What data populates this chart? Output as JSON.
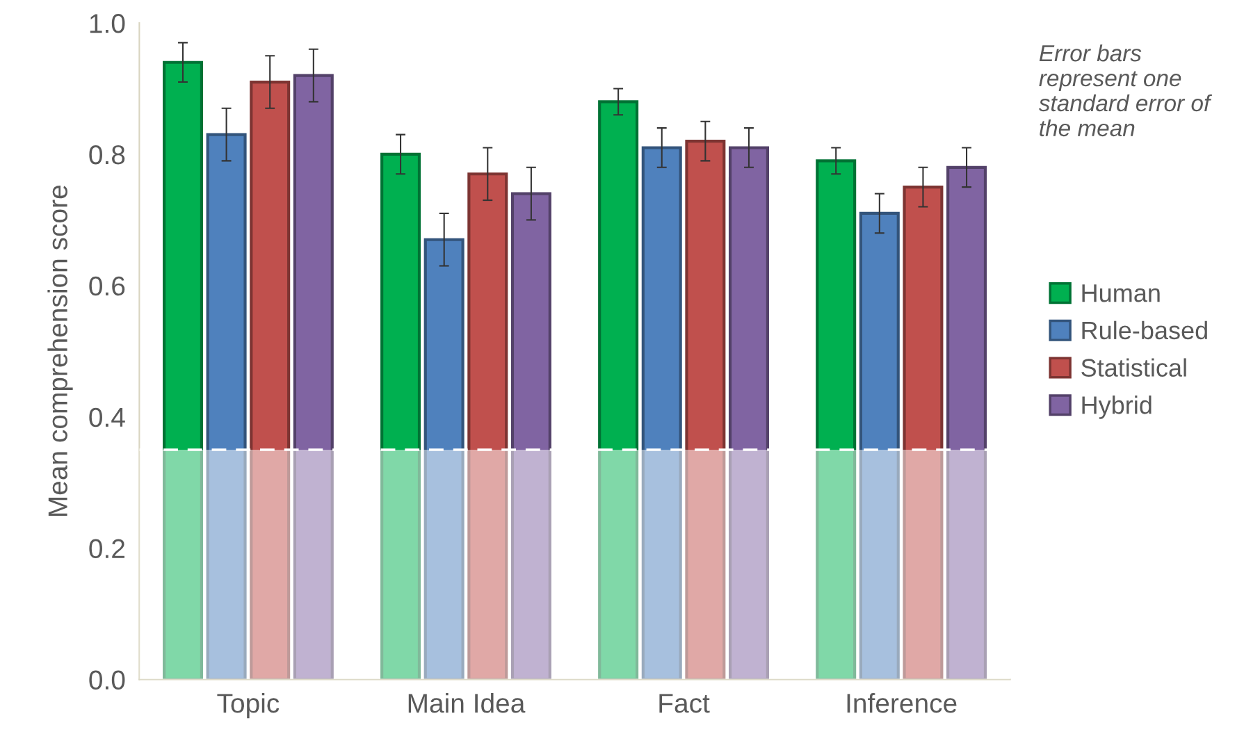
{
  "chart_data": {
    "type": "bar",
    "ylabel": "Mean comprehension score",
    "categories": [
      "Topic",
      "Main Idea",
      "Fact",
      "Inference"
    ],
    "series": [
      {
        "name": "Human",
        "color": "#00b050",
        "values": [
          0.94,
          0.8,
          0.88,
          0.79
        ],
        "errors": [
          0.03,
          0.03,
          0.02,
          0.02
        ]
      },
      {
        "name": "Rule-based",
        "color": "#4f81bd",
        "values": [
          0.83,
          0.67,
          0.81,
          0.71
        ],
        "errors": [
          0.04,
          0.04,
          0.03,
          0.03
        ]
      },
      {
        "name": "Statistical",
        "color": "#c0504d",
        "values": [
          0.91,
          0.77,
          0.82,
          0.75
        ],
        "errors": [
          0.04,
          0.04,
          0.03,
          0.03
        ]
      },
      {
        "name": "Hybrid",
        "color": "#8064a2",
        "values": [
          0.92,
          0.74,
          0.81,
          0.78
        ],
        "errors": [
          0.04,
          0.04,
          0.03,
          0.03
        ]
      }
    ],
    "ylim": [
      0,
      1.0
    ],
    "yticks": [
      {
        "value": 0,
        "label": "0.0"
      },
      {
        "value": 0.2,
        "label": "0.2"
      },
      {
        "value": 0.4,
        "label": "0.4"
      },
      {
        "value": 0.6,
        "label": "0.6"
      },
      {
        "value": 0.8,
        "label": "0.8"
      },
      {
        "value": 1.0,
        "label": "1.0"
      }
    ],
    "ref_lines": [
      {
        "axis": "y",
        "value": 0.35,
        "color": "#ffffff",
        "line_style": "dashed"
      }
    ],
    "bands": [
      {
        "axis": "y",
        "from": 0,
        "to": 0.35,
        "color": "#ffffff"
      }
    ],
    "annotations": [
      "Error bars represent one standard error of the mean"
    ],
    "grid": false,
    "legend": "right"
  }
}
